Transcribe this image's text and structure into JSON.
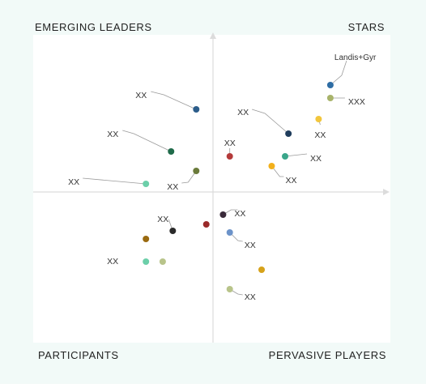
{
  "quadrants": {
    "top_left": "EMERGING LEADERS",
    "top_right": "STARS",
    "bottom_left": "PARTICIPANTS",
    "bottom_right": "PERVASIVE PLAYERS"
  },
  "colors": {
    "outer_background": "#f2faf8",
    "plot_background": "#ffffff",
    "axis": "#dcdcdc"
  },
  "chart_data": {
    "type": "scatter",
    "title": "",
    "xlabel": "",
    "ylabel": "",
    "xlim": [
      -10,
      10
    ],
    "ylim": [
      -10,
      10
    ],
    "axes_crossing": [
      0,
      0
    ],
    "grid": false,
    "legend": "none",
    "points": [
      {
        "label": "Landis+Gyr",
        "x": 7.0,
        "y": 6.6,
        "color": "#2e6da4"
      },
      {
        "label": "XXX",
        "x": 7.0,
        "y": 5.8,
        "color": "#a8b36a"
      },
      {
        "label": "XX",
        "x": 6.3,
        "y": 4.5,
        "color": "#f2c63c"
      },
      {
        "label": "XX",
        "x": 4.5,
        "y": 3.6,
        "color": "#1f3d5c"
      },
      {
        "label": "XX",
        "x": 4.3,
        "y": 2.2,
        "color": "#3aa68a"
      },
      {
        "label": "XX",
        "x": 3.5,
        "y": 1.6,
        "color": "#f2b01c"
      },
      {
        "label": "XX",
        "x": 1.0,
        "y": 2.2,
        "color": "#b43a3a"
      },
      {
        "label": "XX",
        "x": -1.0,
        "y": 5.1,
        "color": "#2c5d8a"
      },
      {
        "label": "XX",
        "x": -2.5,
        "y": 2.5,
        "color": "#1f6b4a"
      },
      {
        "label": "XX",
        "x": -1.0,
        "y": 1.3,
        "color": "#6a7a3a"
      },
      {
        "label": "XX",
        "x": -4.0,
        "y": 0.5,
        "color": "#6ccfa9"
      },
      {
        "label": "XX",
        "x": 0.6,
        "y": -1.4,
        "color": "#3a2a3a"
      },
      {
        "label": "",
        "x": -0.4,
        "y": -2.0,
        "color": "#9a2a2a"
      },
      {
        "label": "XX",
        "x": -2.4,
        "y": -2.4,
        "color": "#2a2a2a"
      },
      {
        "label": "XX",
        "x": 1.0,
        "y": -2.5,
        "color": "#6c93c9"
      },
      {
        "label": "",
        "x": -4.0,
        "y": -2.9,
        "color": "#9a6a10"
      },
      {
        "label": "XX",
        "x": -4.0,
        "y": -4.3,
        "color": "#6ccfa9"
      },
      {
        "label": "",
        "x": -3.0,
        "y": -4.3,
        "color": "#b8c48a"
      },
      {
        "label": "",
        "x": 2.9,
        "y": -4.8,
        "color": "#d6a21a"
      },
      {
        "label": "XX",
        "x": 1.0,
        "y": -6.0,
        "color": "#b8c48a"
      }
    ]
  }
}
